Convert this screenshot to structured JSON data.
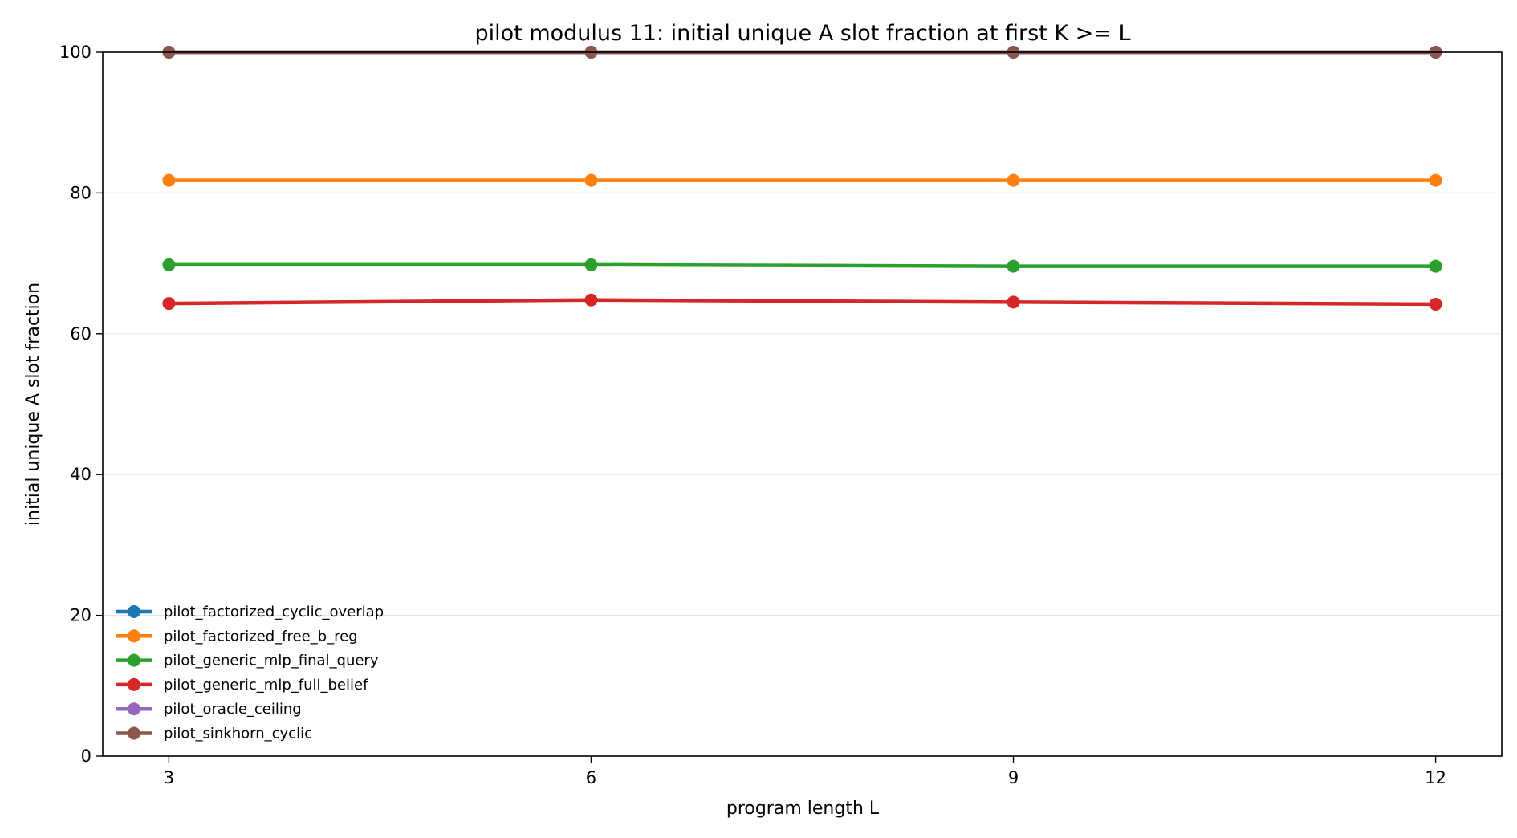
{
  "chart_data": {
    "type": "line",
    "title": "pilot modulus 11: initial unique A slot fraction at first K >= L",
    "xlabel": "program length L",
    "ylabel": "initial unique A slot fraction",
    "x": [
      3,
      6,
      9,
      12
    ],
    "xlim": [
      2.53,
      12.47
    ],
    "ylim": [
      0,
      100
    ],
    "yticks": [
      0,
      20,
      40,
      60,
      80,
      100
    ],
    "grid": "horizontal",
    "legend_position": "lower-left",
    "series": [
      {
        "name": "pilot_factorized_cyclic_overlap",
        "color": "#1f77b4",
        "values": [
          100,
          100,
          100,
          100
        ]
      },
      {
        "name": "pilot_factorized_free_b_reg",
        "color": "#ff7f0e",
        "values": [
          81.8,
          81.8,
          81.8,
          81.8
        ]
      },
      {
        "name": "pilot_generic_mlp_final_query",
        "color": "#2ca02c",
        "values": [
          69.8,
          69.8,
          69.6,
          69.6
        ]
      },
      {
        "name": "pilot_generic_mlp_full_belief",
        "color": "#d62728",
        "values": [
          64.3,
          64.8,
          64.5,
          64.2
        ]
      },
      {
        "name": "pilot_oracle_ceiling",
        "color": "#9467bd",
        "values": [
          100,
          100,
          100,
          100
        ]
      },
      {
        "name": "pilot_sinkhorn_cyclic",
        "color": "#8c564b",
        "values": [
          100,
          100,
          100,
          100
        ]
      }
    ]
  }
}
